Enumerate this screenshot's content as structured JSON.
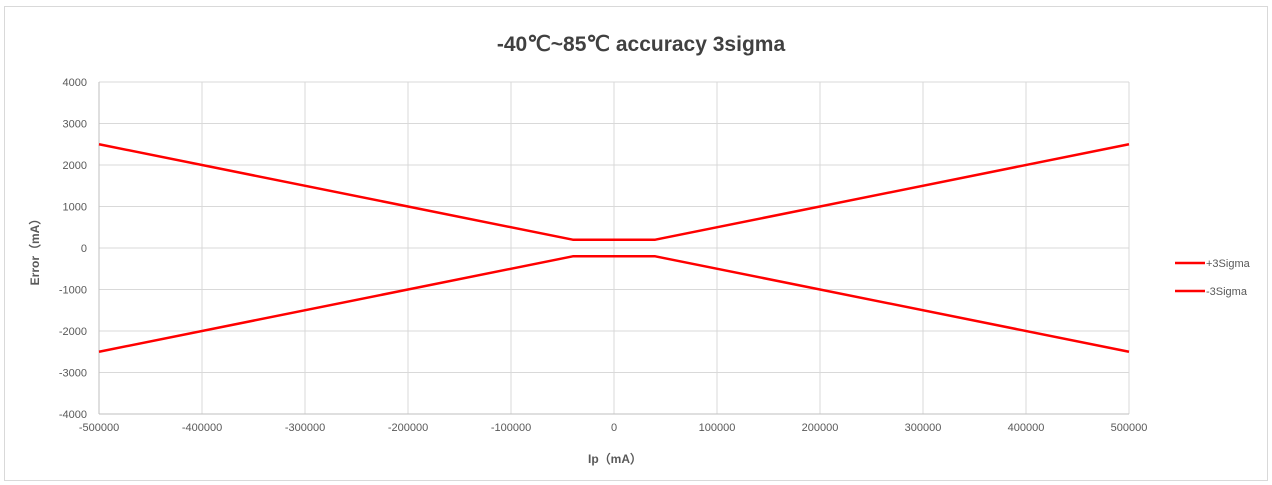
{
  "chart_data": {
    "type": "line",
    "title": "-40℃~85℃ accuracy 3sigma",
    "xlabel": "Ip（mA）",
    "ylabel": "Error（mA）",
    "xlim": [
      -500000,
      500000
    ],
    "ylim": [
      -4000,
      4000
    ],
    "x_ticks": [
      -500000,
      -400000,
      -300000,
      -200000,
      -100000,
      0,
      100000,
      200000,
      300000,
      400000,
      500000
    ],
    "y_ticks": [
      -4000,
      -3000,
      -2000,
      -1000,
      0,
      1000,
      2000,
      3000,
      4000
    ],
    "grid": true,
    "legend_position": "right",
    "series": [
      {
        "name": "+3Sigma",
        "color": "#ff0000",
        "points": [
          [
            -500000,
            2500
          ],
          [
            -40000,
            200
          ],
          [
            40000,
            200
          ],
          [
            500000,
            2500
          ]
        ]
      },
      {
        "name": "-3Sigma",
        "color": "#ff0000",
        "points": [
          [
            -500000,
            -2500
          ],
          [
            -40000,
            -200
          ],
          [
            40000,
            -200
          ],
          [
            500000,
            -2500
          ]
        ]
      }
    ]
  }
}
